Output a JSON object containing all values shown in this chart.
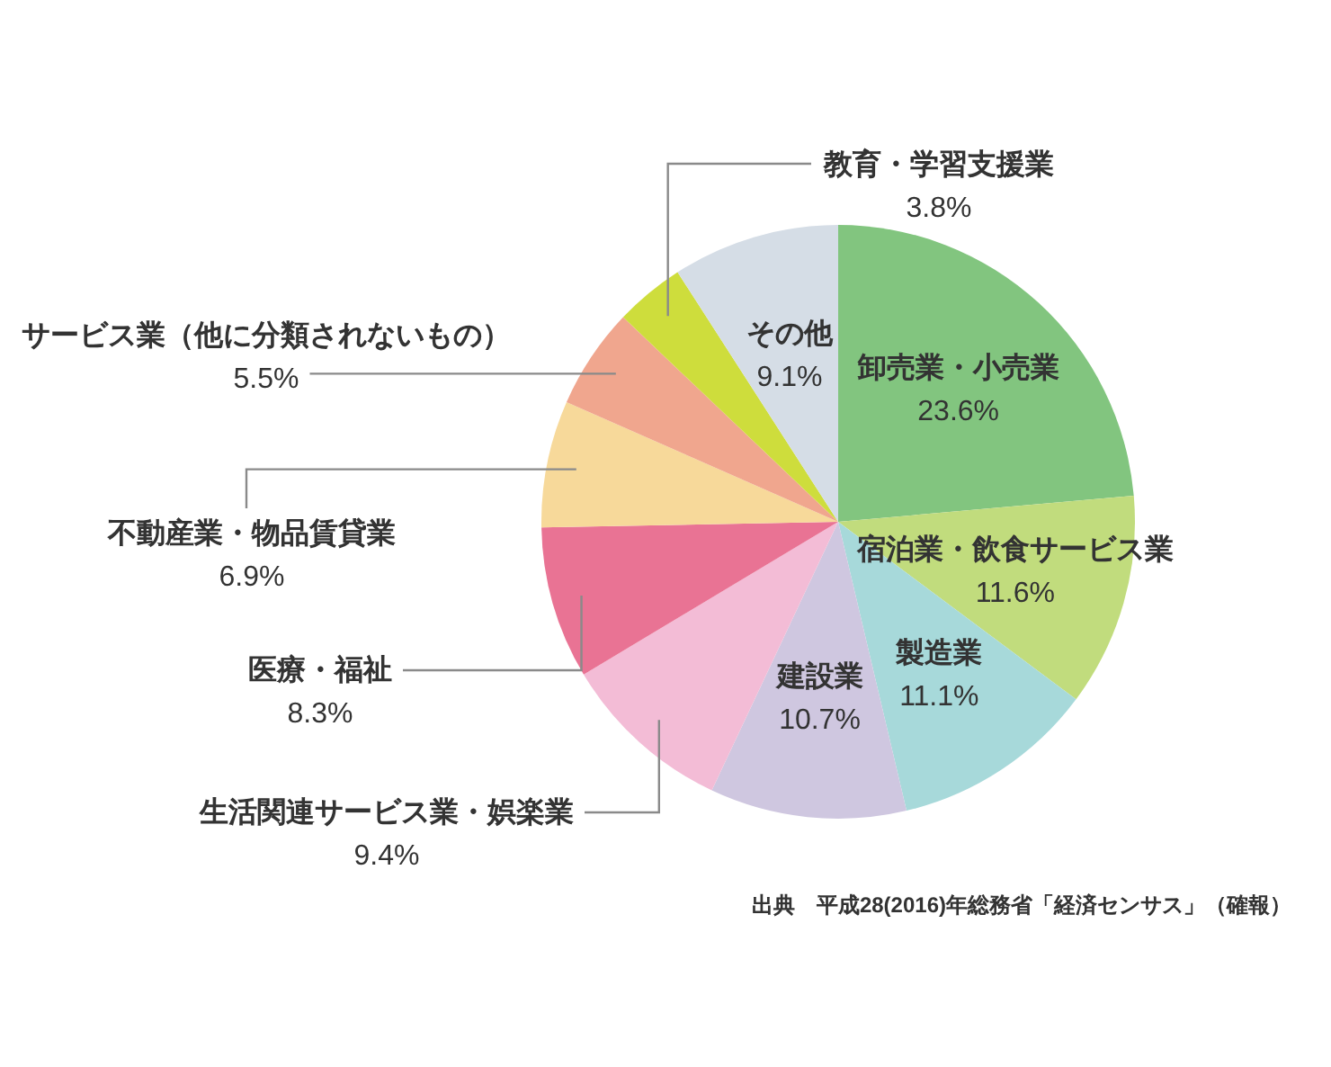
{
  "chart_data": {
    "type": "pie",
    "categories": [
      "卸売業・小売業",
      "宿泊業・飲食サービス業",
      "製造業",
      "建設業",
      "生活関連サービス業・娯楽業",
      "医療・福祉",
      "不動産業・物品賃貸業",
      "サービス業（他に分類されないもの）",
      "教育・学習支援業",
      "その他"
    ],
    "values": [
      23.6,
      11.6,
      11.1,
      10.7,
      9.4,
      8.3,
      6.9,
      5.5,
      3.8,
      9.1
    ],
    "value_labels": [
      "23.6%",
      "11.6%",
      "11.1%",
      "10.7%",
      "9.4%",
      "8.3%",
      "6.9%",
      "5.5%",
      "3.8%",
      "9.1%"
    ],
    "colors": [
      "#82c57f",
      "#c1dc7d",
      "#a7d9da",
      "#cfc7e0",
      "#f3bcd6",
      "#e97394",
      "#f7d99a",
      "#f0a68e",
      "#cedd3c",
      "#d5dde6"
    ],
    "annotations": [
      "出典　平成28(2016)年総務省「経済センサス」（確報）"
    ]
  }
}
